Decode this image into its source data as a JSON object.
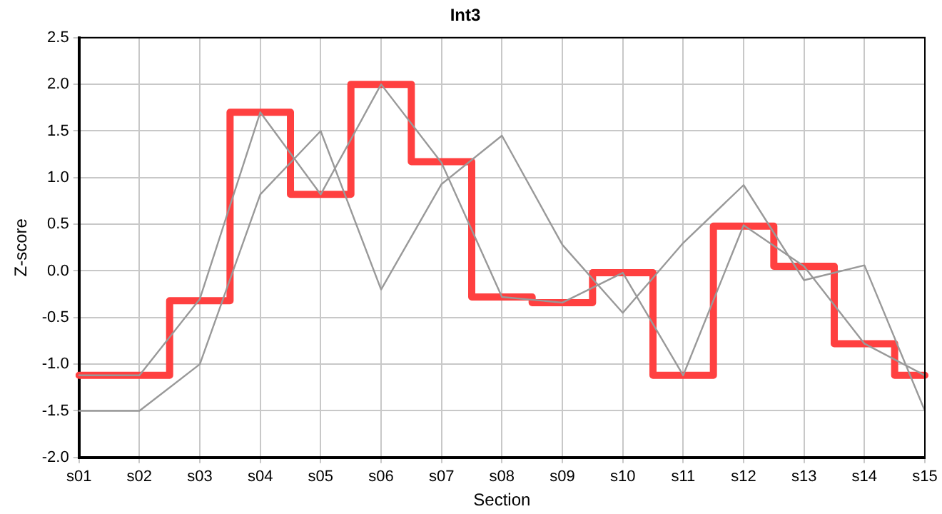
{
  "chart_data": {
    "type": "line",
    "title": "Int3",
    "xlabel": "Section",
    "ylabel": "Z-score",
    "categories": [
      "s01",
      "s02",
      "s03",
      "s04",
      "s05",
      "s06",
      "s07",
      "s08",
      "s09",
      "s10",
      "s11",
      "s12",
      "s13",
      "s14",
      "s15"
    ],
    "series": [
      {
        "color": "#999999",
        "values": [
          -1.5,
          -1.5,
          -1.0,
          0.82,
          1.5,
          -0.2,
          0.93,
          1.45,
          0.28,
          -0.45,
          0.3,
          0.92,
          -0.1,
          0.06,
          -1.5
        ]
      },
      {
        "color": "#999999",
        "values": [
          -1.12,
          -1.12,
          -0.3,
          1.7,
          0.82,
          2.0,
          1.16,
          -0.28,
          -0.34,
          -0.02,
          -1.12,
          0.49,
          0.05,
          -0.78,
          -1.12
        ]
      },
      {
        "type": "step",
        "color": "#ff4040",
        "values": [
          -1.12,
          -1.12,
          -0.32,
          1.7,
          0.82,
          2.0,
          1.17,
          -0.28,
          -0.34,
          -0.02,
          -1.12,
          0.48,
          0.05,
          -0.78,
          -1.12
        ]
      }
    ],
    "ylim": [
      -2.0,
      2.5
    ],
    "yticks": [
      {
        "value": -2,
        "label": "-2.0"
      },
      {
        "value": -1.5,
        "label": "-1.5"
      },
      {
        "value": -1,
        "label": "-1.0"
      },
      {
        "value": -0.5,
        "label": "-0.5"
      },
      {
        "value": 0,
        "label": "0.0"
      },
      {
        "value": 0.5,
        "label": "0.5"
      },
      {
        "value": 1,
        "label": "1.0"
      },
      {
        "value": 1.5,
        "label": "1.5"
      },
      {
        "value": 2,
        "label": "2.0"
      },
      {
        "value": 2.5,
        "label": "2.5"
      }
    ],
    "grid": true,
    "legend": false,
    "marker": "none",
    "line_style": "solid"
  }
}
